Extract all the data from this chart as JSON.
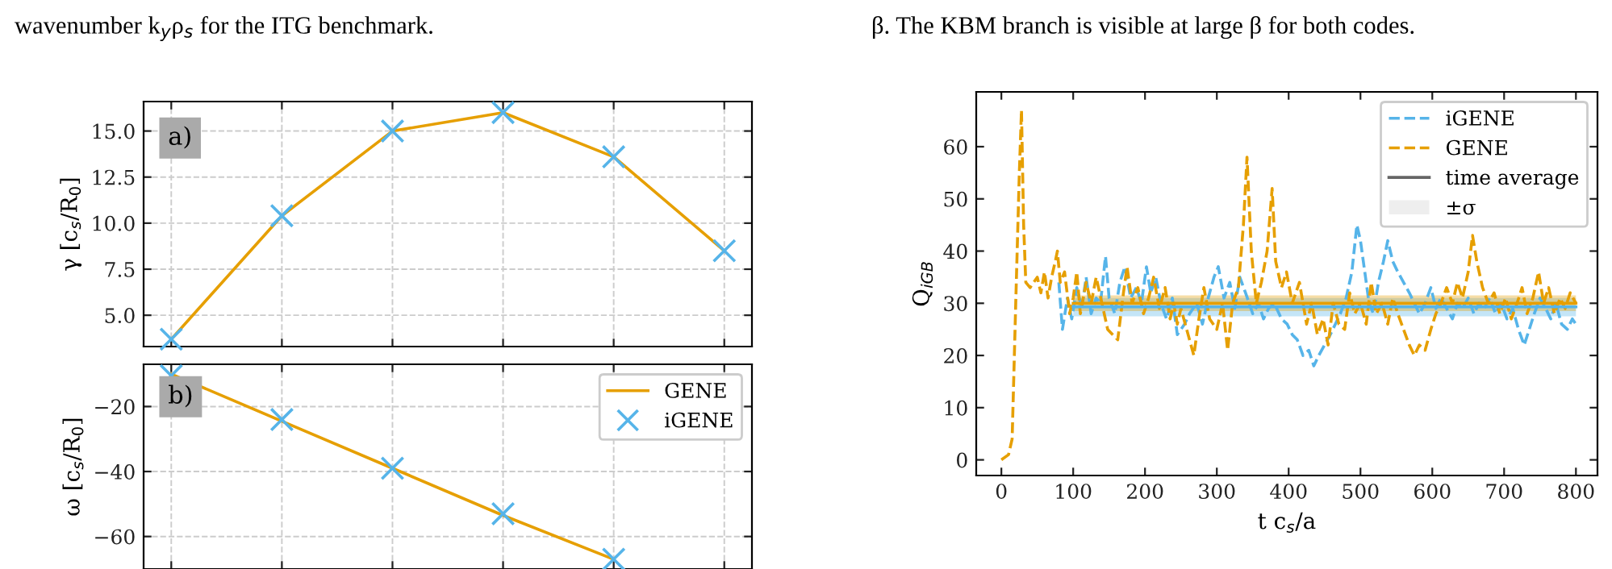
{
  "chart_data": [
    {
      "type": "line",
      "ylabel": "γ [c$_{s}$/R$_{0}$]",
      "categories": [
        null,
        null,
        null,
        null,
        null,
        null
      ],
      "ylim": [
        3.3,
        16.6
      ],
      "yticks": [
        {
          "value": 5.0,
          "label": "5.0"
        },
        {
          "value": 7.5,
          "label": "7.5"
        },
        {
          "value": 10.0,
          "label": "10.0"
        },
        {
          "value": 12.5,
          "label": "12.5"
        },
        {
          "value": 15.0,
          "label": "15.0"
        }
      ],
      "tick_labels": "y",
      "grid": true,
      "legend": false,
      "annotations": [
        "wavenumber k$_{y}$ρ$_{s}$ for the ITG benchmark.",
        "a)"
      ],
      "series": [
        {
          "color": "#e69f00",
          "values": [
            3.7,
            10.4,
            15.0,
            16.0,
            13.6,
            8.5
          ],
          "marker": "none"
        },
        {
          "type": "scatter",
          "color": "#56b4e9",
          "values": [
            3.7,
            10.4,
            15.0,
            16.0,
            13.6,
            8.5
          ],
          "marker": "cross"
        }
      ]
    },
    {
      "type": "line",
      "ylabel": "ω [c$_{s}$/R$_{0}$]",
      "categories": [
        null,
        null,
        null,
        null,
        null,
        null
      ],
      "ylim": [
        -70,
        -7
      ],
      "yticks": [
        {
          "value": -20,
          "label": "−20"
        },
        {
          "value": -40,
          "label": "−40"
        },
        {
          "value": -60,
          "label": "−60"
        }
      ],
      "tick_labels": "y",
      "grid": true,
      "legend": "top right",
      "annotations": [
        "b)"
      ],
      "series": [
        {
          "name": "GENE",
          "color": "#e69f00",
          "values": [
            -10,
            -24.5,
            -39,
            -53.5,
            -67,
            null
          ],
          "marker": "none"
        },
        {
          "type": "scatter",
          "name": "iGENE",
          "color": "#56b4e9",
          "values": [
            -10.5,
            -24,
            -39,
            -53,
            -67,
            null
          ],
          "marker": "cross"
        }
      ]
    },
    {
      "type": "line",
      "ylabel": "Q$_{iGB}$",
      "xlabel": "t c$_{s}$/a",
      "xlim": [
        -35,
        830
      ],
      "ylim": [
        -3,
        70.5
      ],
      "xticks": [
        0,
        100,
        200,
        300,
        400,
        500,
        600,
        700,
        800
      ],
      "yticks": [
        0,
        10,
        20,
        30,
        40,
        50,
        60
      ],
      "grid": false,
      "legend": "top right",
      "annotations": [
        "β. The KBM branch is visible at large β for both codes."
      ],
      "series": [
        {
          "name": "iGENE",
          "color": "#56b4e9",
          "line_style": "dashed",
          "x": [
            80,
            85,
            92,
            98,
            105,
            112,
            118,
            125,
            132,
            138,
            145,
            150,
            158,
            165,
            172,
            180,
            188,
            195,
            202,
            208,
            215,
            222,
            230,
            238,
            245,
            255,
            262,
            272,
            280,
            288,
            296,
            302,
            310,
            318,
            325,
            332,
            340,
            350,
            358,
            365,
            372,
            380,
            390,
            398,
            405,
            412,
            420,
            428,
            435,
            442,
            450,
            458,
            465,
            472,
            480,
            488,
            495,
            500,
            506,
            512,
            518,
            525,
            532,
            538,
            545,
            552,
            560,
            568,
            575,
            582,
            590,
            598,
            605,
            612,
            620,
            628,
            635,
            642,
            650,
            658,
            665,
            672,
            680,
            688,
            696,
            704,
            712,
            720,
            728,
            735,
            742,
            750,
            758,
            765,
            772,
            780,
            788,
            795,
            800
          ],
          "values": [
            34,
            25,
            31,
            27,
            33,
            29,
            35,
            28,
            31,
            30,
            39,
            31,
            28,
            34,
            37,
            31,
            33,
            30,
            37,
            32,
            35,
            30,
            27,
            31,
            24,
            26,
            28,
            30,
            26,
            31,
            35,
            37,
            31,
            34,
            29,
            35,
            32,
            28,
            30,
            27,
            29,
            30,
            27,
            26,
            24,
            23,
            20,
            21,
            18,
            20,
            22,
            24,
            26,
            28,
            31,
            36,
            45,
            42,
            36,
            30,
            28,
            34,
            38,
            42,
            38,
            36,
            34,
            32,
            30,
            28,
            30,
            33,
            29,
            31,
            29,
            27,
            30,
            29,
            31,
            28,
            30,
            29,
            31,
            28,
            30,
            27,
            29,
            25,
            22,
            25,
            28,
            31,
            29,
            27,
            30,
            26,
            25,
            27,
            26
          ]
        },
        {
          "name": "GENE",
          "color": "#e69f00",
          "line_style": "dashed",
          "x": [
            0,
            10,
            15,
            20,
            25,
            28,
            31,
            34,
            40,
            50,
            55,
            60,
            65,
            70,
            75,
            78,
            82,
            88,
            95,
            100,
            105,
            110,
            118,
            125,
            132,
            140,
            148,
            155,
            162,
            170,
            175,
            182,
            190,
            198,
            205,
            212,
            220,
            228,
            235,
            240,
            245,
            250,
            260,
            268,
            275,
            282,
            290,
            300,
            308,
            315,
            322,
            330,
            337,
            342,
            348,
            355,
            362,
            370,
            377,
            382,
            390,
            397,
            405,
            415,
            425,
            432,
            440,
            448,
            455,
            462,
            470,
            478,
            485,
            492,
            500,
            508,
            515,
            522,
            530,
            538,
            545,
            552,
            560,
            568,
            575,
            582,
            590,
            598,
            605,
            612,
            620,
            628,
            635,
            642,
            650,
            656,
            662,
            670,
            678,
            686,
            694,
            702,
            710,
            718,
            725,
            732,
            740,
            748,
            755,
            762,
            770,
            778,
            785,
            792,
            800
          ],
          "values": [
            0,
            1,
            4,
            30,
            55,
            67,
            45,
            34,
            33,
            35,
            32,
            36,
            31,
            35,
            38,
            40,
            34,
            36,
            28,
            31,
            36,
            28,
            34,
            30,
            35,
            30,
            25,
            24,
            23,
            32,
            37,
            30,
            33,
            28,
            31,
            35,
            29,
            33,
            27,
            30,
            26,
            29,
            24,
            20,
            27,
            33,
            27,
            25,
            30,
            21,
            30,
            33,
            45,
            58,
            40,
            30,
            34,
            40,
            52,
            38,
            33,
            36,
            30,
            34,
            26,
            30,
            24,
            27,
            22,
            30,
            26,
            25,
            32,
            28,
            30,
            26,
            34,
            28,
            30,
            26,
            31,
            28,
            25,
            22,
            20,
            22,
            21,
            25,
            28,
            30,
            33,
            30,
            34,
            31,
            36,
            43,
            38,
            33,
            30,
            32,
            28,
            31,
            27,
            30,
            33,
            28,
            31,
            36,
            30,
            33,
            28,
            31,
            29,
            32,
            30
          ]
        },
        {
          "color": "#56b4e9",
          "line_style": "solid",
          "x": [
            100,
            800
          ],
          "values": [
            29.3,
            29.3
          ],
          "lower": [
            27.5,
            27.5
          ],
          "upper": [
            31,
            31
          ]
        },
        {
          "color": "#e69f00",
          "line_style": "solid",
          "x": [
            100,
            800
          ],
          "values": [
            30,
            30
          ],
          "lower": [
            28.5,
            28.5
          ],
          "upper": [
            31.5,
            31.5
          ]
        },
        {
          "name": "time average",
          "color": "#666666",
          "line_style": "solid"
        },
        {
          "type": "area",
          "name": "±σ",
          "color": "#eeeeee"
        }
      ]
    }
  ]
}
